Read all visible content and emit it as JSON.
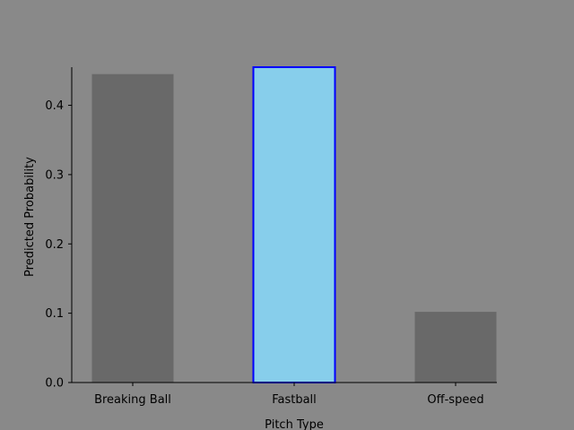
{
  "chart_data": {
    "type": "bar",
    "categories": [
      "Breaking Ball",
      "Fastball",
      "Off-speed"
    ],
    "values": [
      0.445,
      0.455,
      0.102
    ],
    "highlight_index": 1,
    "xlabel": "Pitch Type",
    "ylabel": "Predicted Probability",
    "ylim": [
      0,
      0.455
    ],
    "yticks": [
      0.0,
      0.1,
      0.2,
      0.3,
      0.4
    ],
    "ytick_labels": [
      "0.0",
      "0.1",
      "0.2",
      "0.3",
      "0.4"
    ],
    "grid": false,
    "legend": "none",
    "colors": {
      "background": "#898989",
      "bar": "#696969",
      "highlight_fill": "#87ceeb",
      "highlight_edge": "#0000ff",
      "axis": "#000000"
    }
  }
}
